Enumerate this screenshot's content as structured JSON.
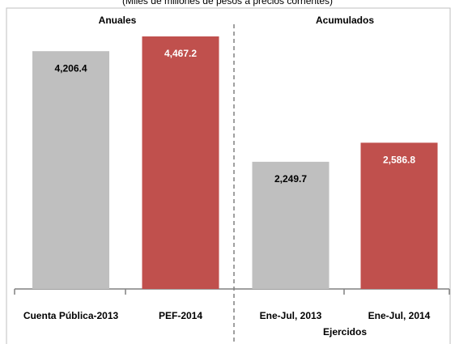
{
  "chart_data": {
    "type": "bar",
    "title": "(Miles de millones de pesos a precios corrientes)",
    "categories": [
      "Cuenta Pública-2013",
      "PEF-2014",
      "Ene-Jul, 2013",
      "Ene-Jul, 2014"
    ],
    "values": [
      4206.4,
      4467.2,
      2249.7,
      2586.8
    ],
    "value_labels": [
      "4,206.4",
      "4,467.2",
      "2,249.7",
      "2,586.8"
    ],
    "colors": [
      "#bfbfbf",
      "#c0504d",
      "#bfbfbf",
      "#c0504d"
    ],
    "annotations": [
      "Anuales",
      "Acumulados",
      "Ejercidos"
    ]
  }
}
